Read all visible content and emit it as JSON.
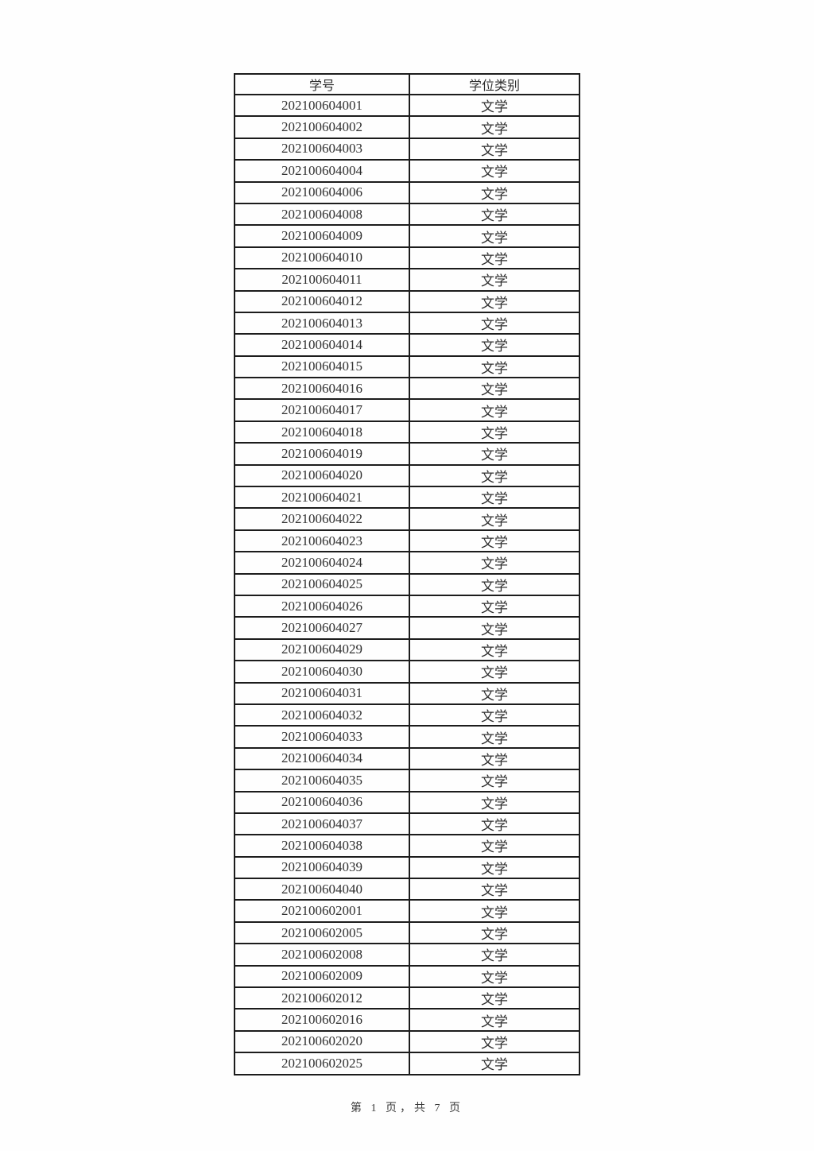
{
  "page": {
    "footer": "第 1 页，共 7 页"
  },
  "colors": {
    "border": "#1c1c1c",
    "text": "#303030",
    "background": "#fefefe"
  },
  "table": {
    "columns": [
      {
        "key": "id",
        "label": "学号"
      },
      {
        "key": "category",
        "label": "学位类别"
      }
    ],
    "rows": [
      {
        "id": "202100604001",
        "category": "文学"
      },
      {
        "id": "202100604002",
        "category": "文学"
      },
      {
        "id": "202100604003",
        "category": "文学"
      },
      {
        "id": "202100604004",
        "category": "文学"
      },
      {
        "id": "202100604006",
        "category": "文学"
      },
      {
        "id": "202100604008",
        "category": "文学"
      },
      {
        "id": "202100604009",
        "category": "文学"
      },
      {
        "id": "202100604010",
        "category": "文学"
      },
      {
        "id": "202100604011",
        "category": "文学"
      },
      {
        "id": "202100604012",
        "category": "文学"
      },
      {
        "id": "202100604013",
        "category": "文学"
      },
      {
        "id": "202100604014",
        "category": "文学"
      },
      {
        "id": "202100604015",
        "category": "文学"
      },
      {
        "id": "202100604016",
        "category": "文学"
      },
      {
        "id": "202100604017",
        "category": "文学"
      },
      {
        "id": "202100604018",
        "category": "文学"
      },
      {
        "id": "202100604019",
        "category": "文学"
      },
      {
        "id": "202100604020",
        "category": "文学"
      },
      {
        "id": "202100604021",
        "category": "文学"
      },
      {
        "id": "202100604022",
        "category": "文学"
      },
      {
        "id": "202100604023",
        "category": "文学"
      },
      {
        "id": "202100604024",
        "category": "文学"
      },
      {
        "id": "202100604025",
        "category": "文学"
      },
      {
        "id": "202100604026",
        "category": "文学"
      },
      {
        "id": "202100604027",
        "category": "文学"
      },
      {
        "id": "202100604029",
        "category": "文学"
      },
      {
        "id": "202100604030",
        "category": "文学"
      },
      {
        "id": "202100604031",
        "category": "文学"
      },
      {
        "id": "202100604032",
        "category": "文学"
      },
      {
        "id": "202100604033",
        "category": "文学"
      },
      {
        "id": "202100604034",
        "category": "文学"
      },
      {
        "id": "202100604035",
        "category": "文学"
      },
      {
        "id": "202100604036",
        "category": "文学"
      },
      {
        "id": "202100604037",
        "category": "文学"
      },
      {
        "id": "202100604038",
        "category": "文学"
      },
      {
        "id": "202100604039",
        "category": "文学"
      },
      {
        "id": "202100604040",
        "category": "文学"
      },
      {
        "id": "202100602001",
        "category": "文学"
      },
      {
        "id": "202100602005",
        "category": "文学"
      },
      {
        "id": "202100602008",
        "category": "文学"
      },
      {
        "id": "202100602009",
        "category": "文学"
      },
      {
        "id": "202100602012",
        "category": "文学"
      },
      {
        "id": "202100602016",
        "category": "文学"
      },
      {
        "id": "202100602020",
        "category": "文学"
      },
      {
        "id": "202100602025",
        "category": "文学"
      }
    ]
  }
}
